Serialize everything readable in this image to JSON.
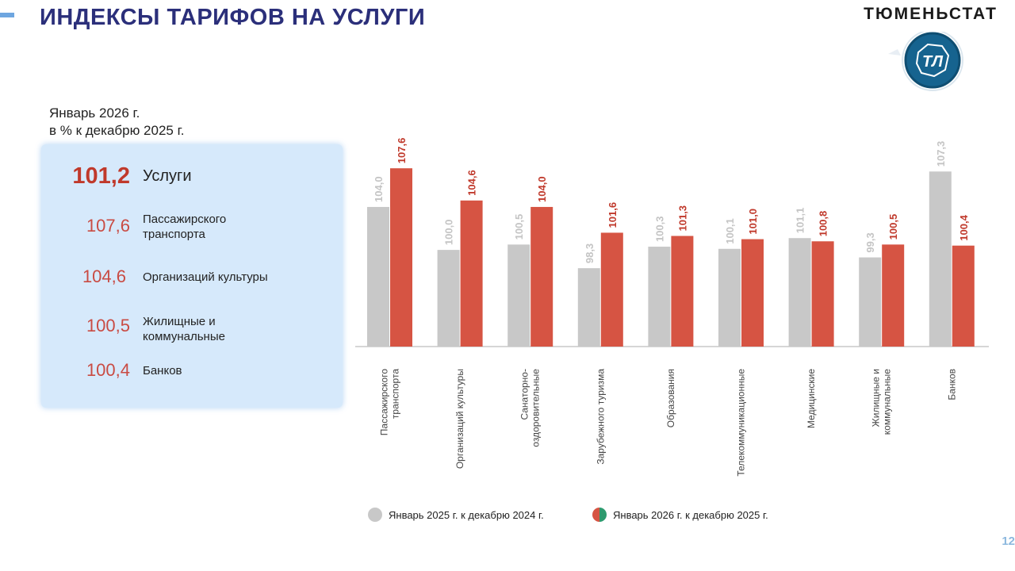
{
  "header": {
    "title": "ИНДЕКСЫ ТАРИФОВ НА УСЛУГИ",
    "org": "ТЮМЕНЬСТАТ",
    "logo_text": "ТЛ"
  },
  "subtitle": {
    "line1": "Январь 2026 г.",
    "line2": "в % к декабрю 2025 г."
  },
  "summary": {
    "main": {
      "value": "101,2",
      "label": "Услуги"
    },
    "items": [
      {
        "value": "107,6",
        "label": "Пассажирского транспорта"
      },
      {
        "value": "104,6",
        "label": "Организаций культуры"
      },
      {
        "value": "100,5",
        "label": "Жилищные и коммунальные"
      },
      {
        "value": "100,4",
        "label": "Банков"
      }
    ]
  },
  "chart_data": {
    "type": "bar",
    "categories": [
      "Пассажирского транспорта",
      "Организаций культуры",
      "Санаторно-оздоровительные",
      "Зарубежного туризма",
      "Образования",
      "Телекоммуникационные",
      "Медицинские",
      "Жилищные и коммунальные",
      "Банков"
    ],
    "category_lines": [
      [
        "Пассажирского",
        "транспорта"
      ],
      [
        "Организаций культуры"
      ],
      [
        "Санаторно-",
        "оздоровительные"
      ],
      [
        "Зарубежного туризма"
      ],
      [
        "Образования"
      ],
      [
        "Телекоммуникационные"
      ],
      [
        "Медицинские"
      ],
      [
        "Жилищные и",
        "коммунальные"
      ],
      [
        "Банков"
      ]
    ],
    "series": [
      {
        "name": "Январь 2025 г. к декабрю 2024 г.",
        "color": "#c8c8c8",
        "label_color": "#c4c4c4",
        "values": [
          104.0,
          100.0,
          100.5,
          98.3,
          100.3,
          100.1,
          101.1,
          99.3,
          107.3
        ],
        "labels": [
          "104,0",
          "100,0",
          "100,5",
          "98,3",
          "100,3",
          "100,1",
          "101,1",
          "99,3",
          "107,3"
        ]
      },
      {
        "name": "Январь 2026 г. к декабрю 2025 г.",
        "color": "#d65443",
        "label_color": "#c0392b",
        "values": [
          107.6,
          104.6,
          104.0,
          101.6,
          101.3,
          101.0,
          100.8,
          100.5,
          100.4
        ],
        "labels": [
          "107,6",
          "104,6",
          "104,0",
          "101,6",
          "101,3",
          "101,0",
          "100,8",
          "100,5",
          "100,4"
        ]
      }
    ],
    "ylim": [
      91.0,
      108.5
    ],
    "title": "",
    "xlabel": "",
    "ylabel": "",
    "legend_position": "bottom"
  },
  "page_number": "12",
  "colors": {
    "title": "#2b2f7a",
    "accent": "#6ea6e0",
    "panel_bg": "#d6e9fb",
    "highlight": "#c0392b",
    "logo": "#16638f"
  }
}
